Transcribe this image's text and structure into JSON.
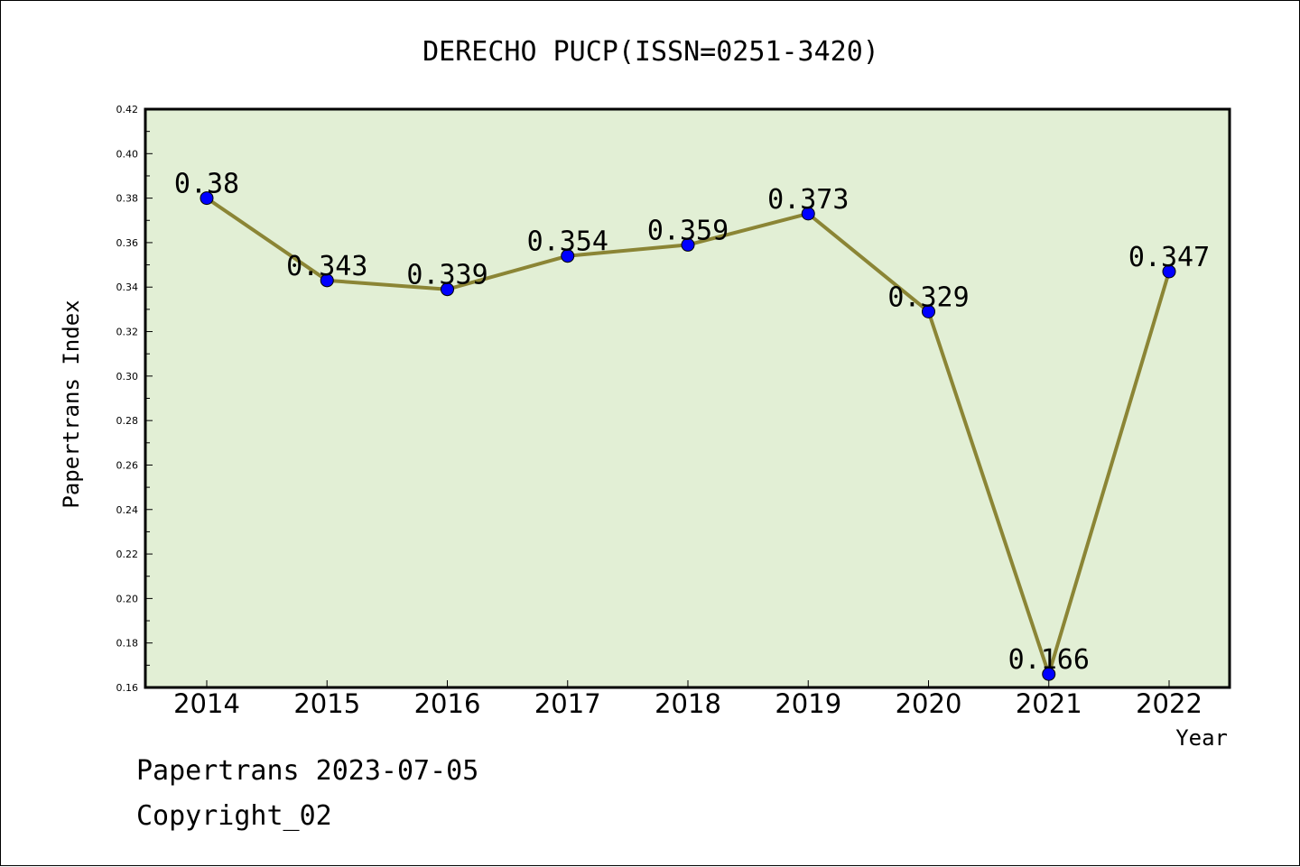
{
  "chart_data": {
    "type": "line",
    "title": "DERECHO PUCP(ISSN=0251-3420)",
    "xlabel": "Year",
    "ylabel": "Papertrans Index",
    "categories": [
      "2014",
      "2015",
      "2016",
      "2017",
      "2018",
      "2019",
      "2020",
      "2021",
      "2022"
    ],
    "series": [
      {
        "values": [
          0.38,
          0.343,
          0.339,
          0.354,
          0.359,
          0.373,
          0.329,
          0.166,
          0.347
        ]
      }
    ],
    "data_labels": [
      "0.38",
      "0.343",
      "0.339",
      "0.354",
      "0.359",
      "0.373",
      "0.329",
      "0.166",
      "0.347"
    ],
    "ylim": [
      0.16,
      0.42
    ],
    "yticks": [
      "0.16",
      "0.18",
      "0.20",
      "0.22",
      "0.24",
      "0.26",
      "0.28",
      "0.30",
      "0.32",
      "0.34",
      "0.36",
      "0.38",
      "0.40",
      "0.42"
    ],
    "grid": false,
    "colors": {
      "plot_background": "#e2efd5",
      "line": "#8b8535",
      "marker": "#0000ff"
    }
  },
  "footer": {
    "source": "Papertrans 2023-07-05",
    "copyright": "Copyright_02"
  }
}
